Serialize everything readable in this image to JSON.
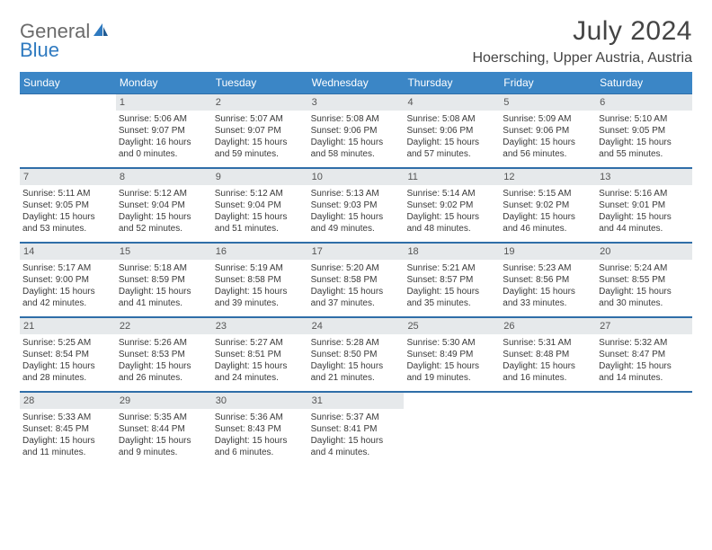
{
  "logo": {
    "line1": "General",
    "line2": "Blue"
  },
  "header": {
    "month": "July 2024",
    "location": "Hoersching, Upper Austria, Austria"
  },
  "colors": {
    "header_bg": "#3b86c6",
    "rule": "#2f6ea8",
    "daynum_bg": "#e6e9eb",
    "logo_gray": "#6b6b6b",
    "logo_blue": "#2f7ac0"
  },
  "dayNames": [
    "Sunday",
    "Monday",
    "Tuesday",
    "Wednesday",
    "Thursday",
    "Friday",
    "Saturday"
  ],
  "weeks": [
    [
      {
        "empty": true
      },
      {
        "n": "1",
        "sr": "5:06 AM",
        "ss": "9:07 PM",
        "d1": "16 hours",
        "d2": "and 0 minutes."
      },
      {
        "n": "2",
        "sr": "5:07 AM",
        "ss": "9:07 PM",
        "d1": "15 hours",
        "d2": "and 59 minutes."
      },
      {
        "n": "3",
        "sr": "5:08 AM",
        "ss": "9:06 PM",
        "d1": "15 hours",
        "d2": "and 58 minutes."
      },
      {
        "n": "4",
        "sr": "5:08 AM",
        "ss": "9:06 PM",
        "d1": "15 hours",
        "d2": "and 57 minutes."
      },
      {
        "n": "5",
        "sr": "5:09 AM",
        "ss": "9:06 PM",
        "d1": "15 hours",
        "d2": "and 56 minutes."
      },
      {
        "n": "6",
        "sr": "5:10 AM",
        "ss": "9:05 PM",
        "d1": "15 hours",
        "d2": "and 55 minutes."
      }
    ],
    [
      {
        "n": "7",
        "sr": "5:11 AM",
        "ss": "9:05 PM",
        "d1": "15 hours",
        "d2": "and 53 minutes."
      },
      {
        "n": "8",
        "sr": "5:12 AM",
        "ss": "9:04 PM",
        "d1": "15 hours",
        "d2": "and 52 minutes."
      },
      {
        "n": "9",
        "sr": "5:12 AM",
        "ss": "9:04 PM",
        "d1": "15 hours",
        "d2": "and 51 minutes."
      },
      {
        "n": "10",
        "sr": "5:13 AM",
        "ss": "9:03 PM",
        "d1": "15 hours",
        "d2": "and 49 minutes."
      },
      {
        "n": "11",
        "sr": "5:14 AM",
        "ss": "9:02 PM",
        "d1": "15 hours",
        "d2": "and 48 minutes."
      },
      {
        "n": "12",
        "sr": "5:15 AM",
        "ss": "9:02 PM",
        "d1": "15 hours",
        "d2": "and 46 minutes."
      },
      {
        "n": "13",
        "sr": "5:16 AM",
        "ss": "9:01 PM",
        "d1": "15 hours",
        "d2": "and 44 minutes."
      }
    ],
    [
      {
        "n": "14",
        "sr": "5:17 AM",
        "ss": "9:00 PM",
        "d1": "15 hours",
        "d2": "and 42 minutes."
      },
      {
        "n": "15",
        "sr": "5:18 AM",
        "ss": "8:59 PM",
        "d1": "15 hours",
        "d2": "and 41 minutes."
      },
      {
        "n": "16",
        "sr": "5:19 AM",
        "ss": "8:58 PM",
        "d1": "15 hours",
        "d2": "and 39 minutes."
      },
      {
        "n": "17",
        "sr": "5:20 AM",
        "ss": "8:58 PM",
        "d1": "15 hours",
        "d2": "and 37 minutes."
      },
      {
        "n": "18",
        "sr": "5:21 AM",
        "ss": "8:57 PM",
        "d1": "15 hours",
        "d2": "and 35 minutes."
      },
      {
        "n": "19",
        "sr": "5:23 AM",
        "ss": "8:56 PM",
        "d1": "15 hours",
        "d2": "and 33 minutes."
      },
      {
        "n": "20",
        "sr": "5:24 AM",
        "ss": "8:55 PM",
        "d1": "15 hours",
        "d2": "and 30 minutes."
      }
    ],
    [
      {
        "n": "21",
        "sr": "5:25 AM",
        "ss": "8:54 PM",
        "d1": "15 hours",
        "d2": "and 28 minutes."
      },
      {
        "n": "22",
        "sr": "5:26 AM",
        "ss": "8:53 PM",
        "d1": "15 hours",
        "d2": "and 26 minutes."
      },
      {
        "n": "23",
        "sr": "5:27 AM",
        "ss": "8:51 PM",
        "d1": "15 hours",
        "d2": "and 24 minutes."
      },
      {
        "n": "24",
        "sr": "5:28 AM",
        "ss": "8:50 PM",
        "d1": "15 hours",
        "d2": "and 21 minutes."
      },
      {
        "n": "25",
        "sr": "5:30 AM",
        "ss": "8:49 PM",
        "d1": "15 hours",
        "d2": "and 19 minutes."
      },
      {
        "n": "26",
        "sr": "5:31 AM",
        "ss": "8:48 PM",
        "d1": "15 hours",
        "d2": "and 16 minutes."
      },
      {
        "n": "27",
        "sr": "5:32 AM",
        "ss": "8:47 PM",
        "d1": "15 hours",
        "d2": "and 14 minutes."
      }
    ],
    [
      {
        "n": "28",
        "sr": "5:33 AM",
        "ss": "8:45 PM",
        "d1": "15 hours",
        "d2": "and 11 minutes."
      },
      {
        "n": "29",
        "sr": "5:35 AM",
        "ss": "8:44 PM",
        "d1": "15 hours",
        "d2": "and 9 minutes."
      },
      {
        "n": "30",
        "sr": "5:36 AM",
        "ss": "8:43 PM",
        "d1": "15 hours",
        "d2": "and 6 minutes."
      },
      {
        "n": "31",
        "sr": "5:37 AM",
        "ss": "8:41 PM",
        "d1": "15 hours",
        "d2": "and 4 minutes."
      },
      {
        "empty": true
      },
      {
        "empty": true
      },
      {
        "empty": true
      }
    ]
  ],
  "labels": {
    "sunrise": "Sunrise:",
    "sunset": "Sunset:",
    "daylight": "Daylight:"
  }
}
